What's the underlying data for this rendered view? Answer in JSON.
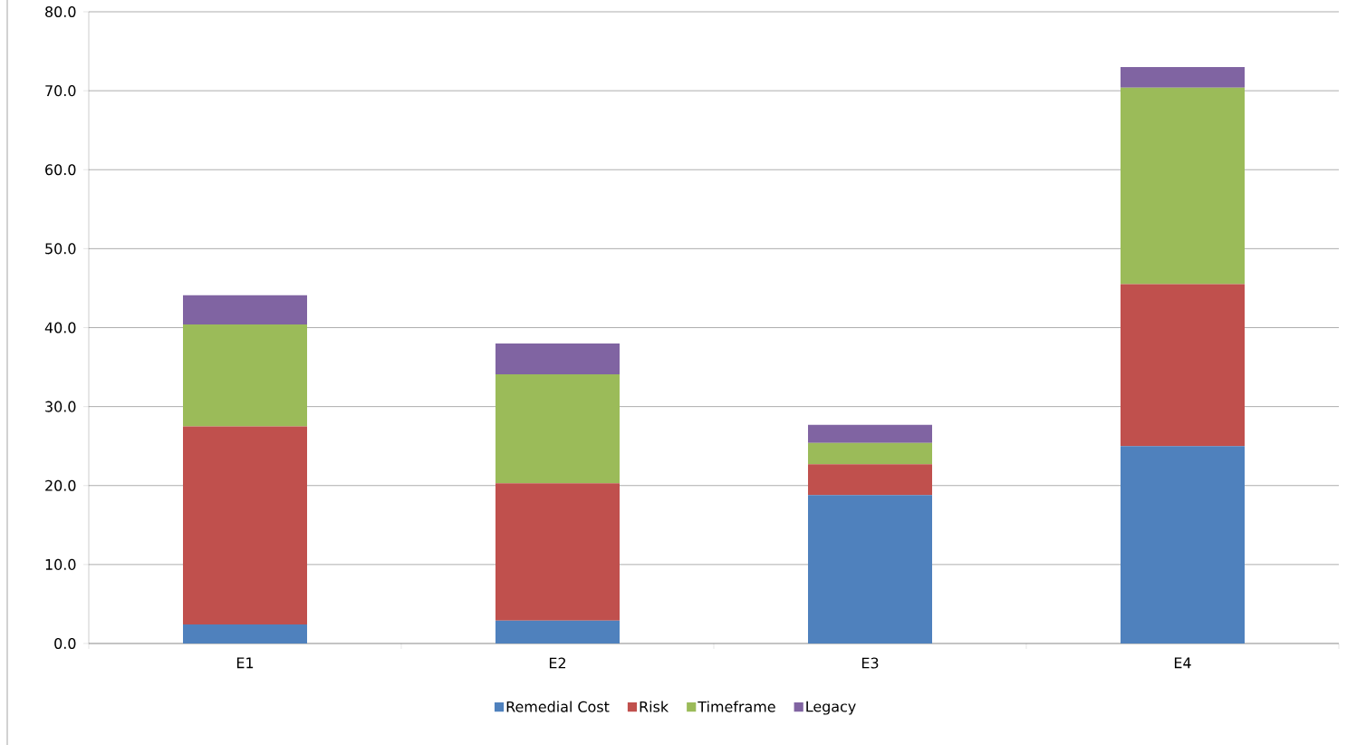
{
  "chart_data": {
    "type": "bar",
    "stacked": true,
    "categories": [
      "E1",
      "E2",
      "E3",
      "E4"
    ],
    "series": [
      {
        "name": "Remedial Cost",
        "color": "#4f81bd",
        "values": [
          2.4,
          2.9,
          18.8,
          25.0
        ]
      },
      {
        "name": "Risk",
        "color": "#c0504d",
        "values": [
          25.1,
          17.4,
          3.9,
          20.5
        ]
      },
      {
        "name": "Timeframe",
        "color": "#9bbb59",
        "values": [
          12.9,
          13.8,
          2.7,
          24.9
        ]
      },
      {
        "name": "Legacy",
        "color": "#8064a2",
        "values": [
          3.7,
          3.9,
          2.3,
          2.6
        ]
      }
    ],
    "ylim": [
      0,
      80
    ],
    "yticks": [
      {
        "value": 0,
        "label": "0.0"
      },
      {
        "value": 10,
        "label": "10.0"
      },
      {
        "value": 20,
        "label": "20.0"
      },
      {
        "value": 30,
        "label": "30.0"
      },
      {
        "value": 40,
        "label": "40.0"
      },
      {
        "value": 50,
        "label": "50.0"
      },
      {
        "value": 60,
        "label": "60.0"
      },
      {
        "value": 70,
        "label": "70.0"
      },
      {
        "value": 80,
        "label": "80.0"
      }
    ],
    "grid": "y",
    "legend": "bottom"
  }
}
